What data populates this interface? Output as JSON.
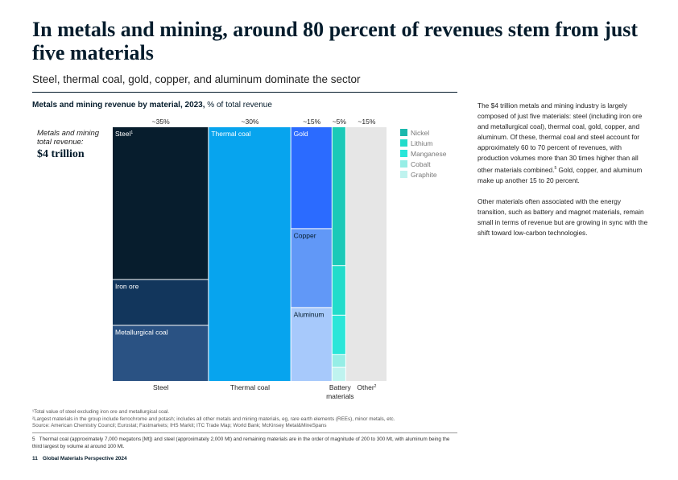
{
  "header": {
    "title": "In metals and mining, around 80 percent of revenues stem from just five materials",
    "subtitle": "Steel, thermal coal, gold, copper, and aluminum dominate the sector"
  },
  "chart_header": {
    "title_bold": "Metals and mining revenue by material, 2023,",
    "title_rest": " % of total revenue"
  },
  "total": {
    "label": "Metals and mining total revenue:",
    "value": "$4 trillion"
  },
  "chart_data": {
    "type": "treemap",
    "title": "Metals and mining revenue by material, 2023",
    "unit": "% of total revenue",
    "columns": [
      {
        "label": "Steel",
        "share_label": "~35%",
        "share": 35,
        "segments": [
          {
            "name": "Steel",
            "sup": "1",
            "share": 0.6,
            "color": "#071d2d"
          },
          {
            "name": "Iron ore",
            "share": 0.18,
            "color": "#12365c"
          },
          {
            "name": "Metallurgical coal",
            "share": 0.22,
            "color": "#2a5283"
          }
        ]
      },
      {
        "label": "Thermal coal",
        "share_label": "~30%",
        "share": 30,
        "segments": [
          {
            "name": "Thermal coal",
            "share": 1.0,
            "color": "#07a4ee"
          }
        ]
      },
      {
        "label": "",
        "share_label": "~15%",
        "share": 15,
        "segments": [
          {
            "name": "Gold",
            "share": 0.4,
            "color": "#2b6bff"
          },
          {
            "name": "Copper",
            "share": 0.31,
            "color": "#6198f7"
          },
          {
            "name": "Aluminum",
            "share": 0.29,
            "color": "#a7c9fb"
          }
        ]
      },
      {
        "label": "Battery materials",
        "share_label": "~5%",
        "share": 5,
        "segments": [
          {
            "name": "",
            "share": 0.545,
            "color": "#1bc9b8"
          },
          {
            "name": "",
            "share": 0.195,
            "color": "#22dccb"
          },
          {
            "name": "",
            "share": 0.155,
            "color": "#2ae6d9"
          },
          {
            "name": "",
            "share": 0.05,
            "color": "#96eee6"
          },
          {
            "name": "",
            "share": 0.055,
            "color": "#bff3ef"
          }
        ]
      },
      {
        "label": "Other",
        "sup": "2",
        "share_label": "~15%",
        "share": 15,
        "segments": [
          {
            "name": "",
            "share": 1.0,
            "color": "#e6e6e6"
          }
        ]
      }
    ],
    "legend": [
      {
        "name": "Nickel",
        "color": "#1bb8ad"
      },
      {
        "name": "Lithium",
        "color": "#22dccb"
      },
      {
        "name": "Manganese",
        "color": "#2ae6d9"
      },
      {
        "name": "Cobalt",
        "color": "#96eee6"
      },
      {
        "name": "Graphite",
        "color": "#bff3ef"
      }
    ]
  },
  "side_text": {
    "p1": "The $4 trillion metals and mining industry is largely composed of just five materials: steel (including iron ore and metallurgical coal), thermal coal, gold, copper, and aluminum. Of these, thermal coal and steel account for approximately 60 to 70 percent of revenues, with production volumes more than 30 times higher than all other materials combined.",
    "p1_sup": "5",
    "p1_end": " Gold, copper, and aluminum make up another 15 to 20 percent.",
    "p2": "Other materials often associated with the energy transition, such as battery and magnet materials, remain small in terms of revenue but are growing in sync with the shift toward low-carbon technologies."
  },
  "footnotes": {
    "f1": "¹Total value of steel excluding iron ore and metallurgical coal.",
    "f2": "²Largest materials in the group include ferrochrome and potash; includes all other metals and mining materials, eg, rare earth elements (REEs), minor metals, etc.",
    "source": "Source: American Chemistry Council; Eurostat; Fastmarkets; IHS Markit; ITC Trade Map; World Bank; McKinsey Metal&MineSpans",
    "f5_num": "5",
    "f5": "Thermal coal (approximately 7,000 megatons [Mt]) and steel (approximately 2,000 Mt) and remaining materials are in the order of magnitude of 200 to 300 Mt, with aluminum being the third largest by volume at around 100 Mt."
  },
  "footer": {
    "page_number": "11",
    "publication": "Global Materials Perspective 2024"
  }
}
